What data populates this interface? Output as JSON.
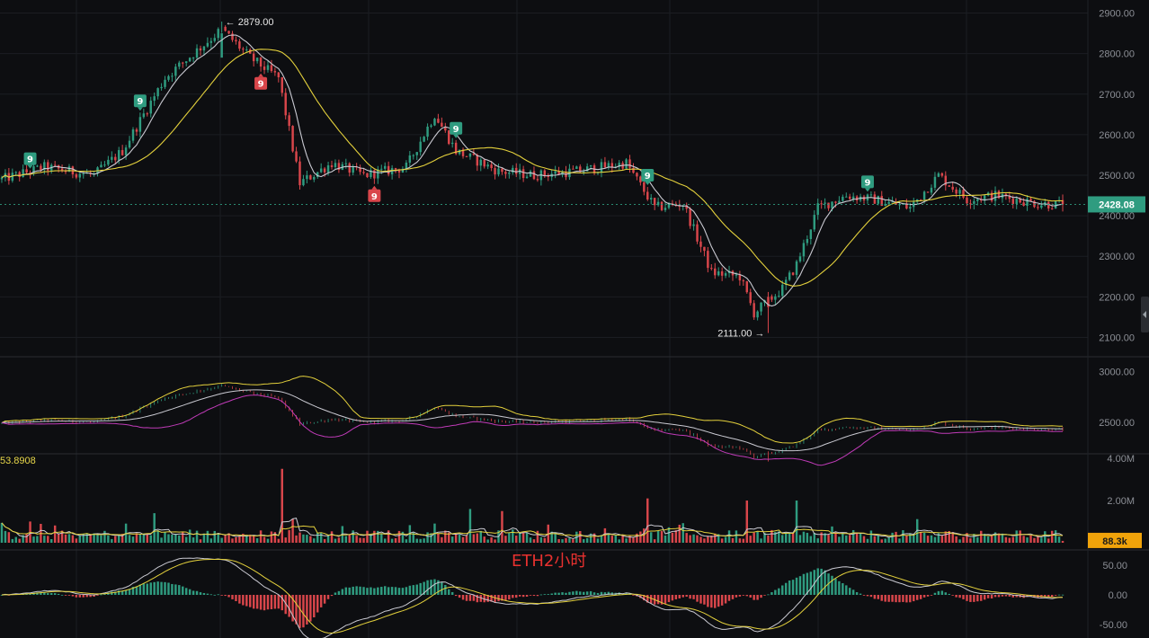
{
  "chart_data": [
    {
      "type": "candlestick",
      "panel": "price",
      "y_ticks": [
        "2900.00",
        "2800.00",
        "2700.00",
        "2600.00",
        "2500.00",
        "2400.00",
        "2300.00",
        "2200.00",
        "2100.00"
      ],
      "ylim": [
        2090,
        2910
      ],
      "last_price": "2428.08",
      "high_label": "2879.00",
      "low_label": "2111.00",
      "high": 2879,
      "low": 2111,
      "anchors": [
        [
          0,
          2490
        ],
        [
          12,
          2520
        ],
        [
          26,
          2500
        ],
        [
          34,
          2560
        ],
        [
          46,
          2740
        ],
        [
          62,
          2860
        ],
        [
          70,
          2790
        ],
        [
          78,
          2740
        ],
        [
          84,
          2480
        ],
        [
          93,
          2530
        ],
        [
          102,
          2500
        ],
        [
          114,
          2520
        ],
        [
          122,
          2650
        ],
        [
          128,
          2560
        ],
        [
          140,
          2510
        ],
        [
          150,
          2500
        ],
        [
          162,
          2510
        ],
        [
          176,
          2530
        ],
        [
          184,
          2420
        ],
        [
          192,
          2430
        ],
        [
          200,
          2260
        ],
        [
          208,
          2250
        ],
        [
          212,
          2160
        ],
        [
          220,
          2220
        ],
        [
          224,
          2280
        ],
        [
          230,
          2420
        ],
        [
          238,
          2450
        ],
        [
          246,
          2440
        ],
        [
          256,
          2420
        ],
        [
          264,
          2500
        ],
        [
          272,
          2440
        ],
        [
          280,
          2450
        ],
        [
          292,
          2430
        ],
        [
          299,
          2428
        ]
      ],
      "td_sequential_badges": [
        {
          "label": "9",
          "bar": 8,
          "kind": "buy"
        },
        {
          "label": "9",
          "bar": 39,
          "kind": "buy"
        },
        {
          "label": "9",
          "bar": 73,
          "kind": "sell"
        },
        {
          "label": "9",
          "bar": 105,
          "kind": "sell"
        },
        {
          "label": "9",
          "bar": 128,
          "kind": "buy"
        },
        {
          "label": "9",
          "bar": 182,
          "kind": "buy"
        },
        {
          "label": "9",
          "bar": 244,
          "kind": "buy"
        }
      ],
      "moving_averages": [
        {
          "period": 7,
          "color": "#c9c9d1"
        },
        {
          "period": 25,
          "color": "#e3d03c"
        }
      ],
      "colors": {
        "up": "#2f9c80",
        "down": "#d9464b",
        "badge_buy": "#2f9c80",
        "badge_sell": "#d9464b"
      }
    },
    {
      "type": "line",
      "panel": "bollinger",
      "y_ticks": [
        "3000.00",
        "2500.00"
      ],
      "series_colors": [
        "#e3d03c",
        "#c9c9d1",
        "#c03bb8"
      ]
    },
    {
      "type": "bar",
      "panel": "volume",
      "y_ticks": [
        "4.00M",
        "2.00M"
      ],
      "ylim": [
        0,
        4000000
      ],
      "indicator_value": "53.8908",
      "last_volume": "88.3k",
      "spikes": [
        [
          79,
          3.5
        ],
        [
          43,
          1.4
        ],
        [
          182,
          2.1
        ],
        [
          210,
          2.0
        ],
        [
          224,
          2.0
        ],
        [
          132,
          1.6
        ],
        [
          141,
          1.5
        ]
      ],
      "colors": {
        "up": "#2f9c80",
        "down": "#d9464b",
        "ma_fast": "#c9c9d1",
        "ma_slow": "#e3d03c",
        "tag": "#f0a30a"
      }
    },
    {
      "type": "bar",
      "panel": "macd",
      "y_ticks": [
        "50.00",
        "0.00",
        "-50.00"
      ],
      "ylim": [
        -68,
        68
      ],
      "colors": {
        "pos": "#2f9c80",
        "neg": "#d9464b",
        "dif": "#c9c9d1",
        "dea": "#e3d03c"
      }
    }
  ],
  "watermark": "ETH2小时"
}
